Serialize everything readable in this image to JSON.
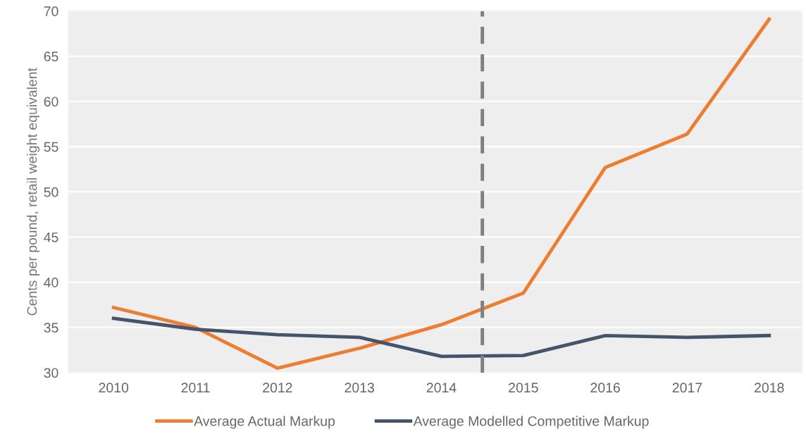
{
  "chart_data": {
    "type": "line",
    "ylabel": "Cents per pound, retail weight equivalent",
    "x": [
      2010,
      2011,
      2012,
      2013,
      2014,
      2015,
      2016,
      2017,
      2018
    ],
    "series": [
      {
        "name": "Average Actual Markup",
        "color": "#ed7d31",
        "values": [
          37.2,
          35.0,
          30.5,
          32.7,
          35.3,
          38.8,
          52.7,
          56.4,
          69.1
        ]
      },
      {
        "name": "Average Modelled Competitive Markup",
        "color": "#44546a",
        "values": [
          36.0,
          34.8,
          34.2,
          33.9,
          31.8,
          31.9,
          34.1,
          33.9,
          34.1
        ]
      }
    ],
    "xlim": [
      2009.45,
      2018.4
    ],
    "xticks": [
      2010,
      2011,
      2012,
      2013,
      2014,
      2015,
      2016,
      2017,
      2018
    ],
    "ylim": [
      30,
      70
    ],
    "yticks": [
      30,
      35,
      40,
      45,
      50,
      55,
      60,
      65,
      70
    ],
    "ref_lines": [
      {
        "axis": "x",
        "value": 2014.5,
        "label": null,
        "color": "#7f7f7f",
        "line_style": "dashed"
      }
    ],
    "grid": "y",
    "legend": "bottom",
    "marker": "none",
    "line_style": "solid"
  }
}
